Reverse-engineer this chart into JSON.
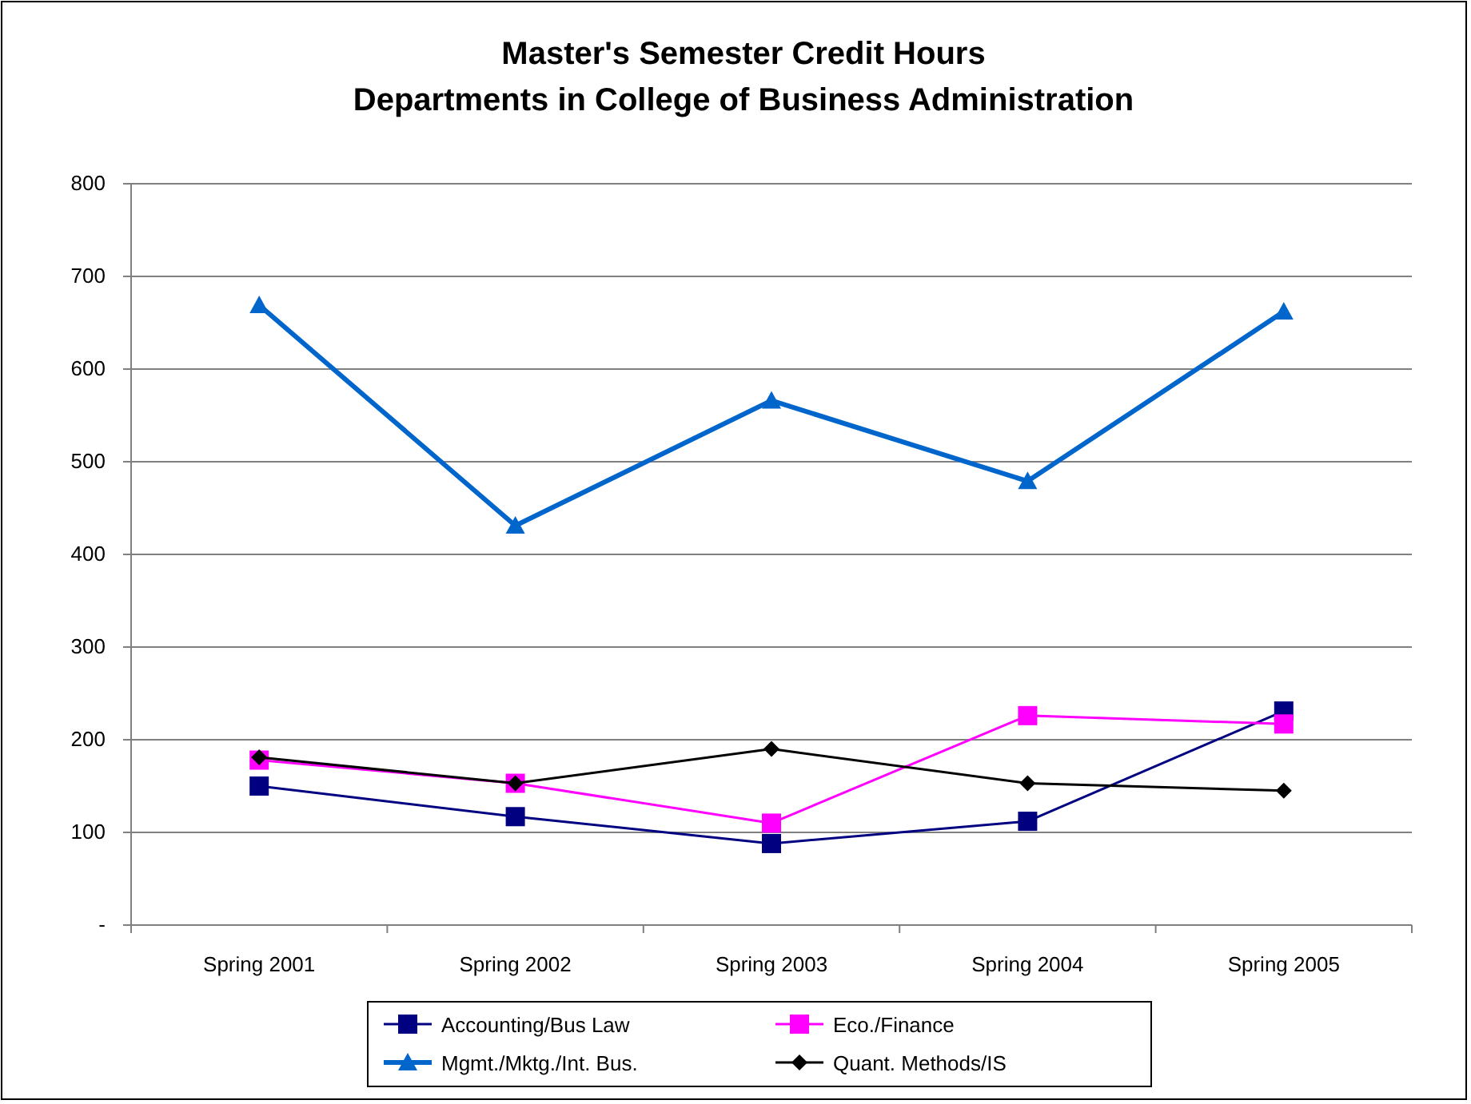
{
  "chart_data": {
    "type": "line",
    "title": "Master's Semester Credit Hours\nDepartments in College of Business Administration",
    "categories": [
      "Spring 2001",
      "Spring 2002",
      "Spring 2003",
      "Spring 2004",
      "Spring 2005"
    ],
    "series": [
      {
        "name": "Accounting/Bus Law",
        "color": "#000080",
        "marker": "square",
        "values": [
          150,
          117,
          88,
          112,
          231
        ]
      },
      {
        "name": "Eco./Finance",
        "color": "#ff00ff",
        "marker": "square",
        "values": [
          178,
          153,
          110,
          226,
          217
        ]
      },
      {
        "name": "Mgmt./Mktg./Int. Bus.",
        "color": "#0066cc",
        "marker": "triangle",
        "values": [
          669,
          431,
          566,
          479,
          662
        ]
      },
      {
        "name": "Quant. Methods/IS",
        "color": "#000000",
        "marker": "diamond",
        "values": [
          181,
          153,
          190,
          153,
          145
        ]
      }
    ],
    "ylim": [
      0,
      800
    ],
    "yticks": [
      {
        "value": 0,
        "label": "-"
      },
      100,
      200,
      300,
      400,
      500,
      600,
      700,
      800
    ],
    "grid": "y",
    "legend": "bottom",
    "line_style": "solid"
  }
}
